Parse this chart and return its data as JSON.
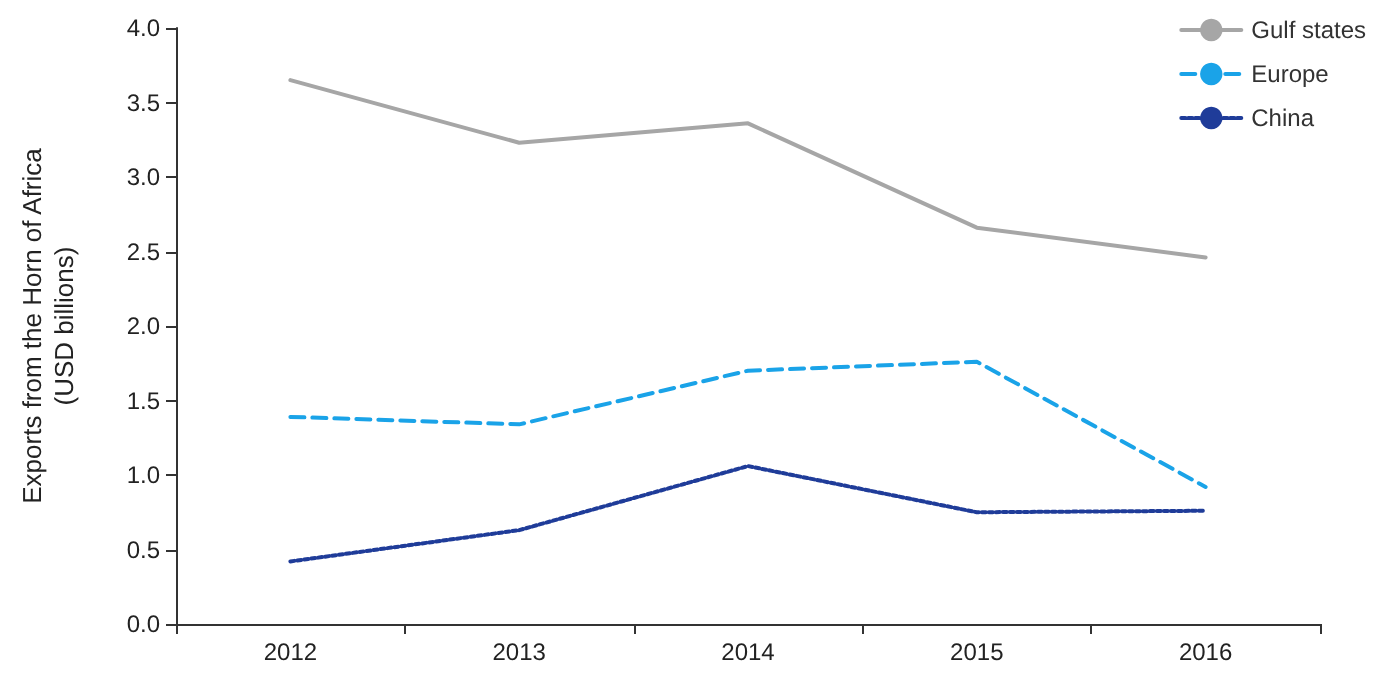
{
  "chart_data": {
    "type": "line",
    "ylabel": "Exports from the Horn of Africa\n(USD billions)",
    "categories": [
      "2012",
      "2013",
      "2014",
      "2015",
      "2016"
    ],
    "series": [
      {
        "name": "Gulf states",
        "color": "#a6a6a6",
        "line_style": "solid",
        "values": [
          3.65,
          3.23,
          3.36,
          2.66,
          2.46
        ]
      },
      {
        "name": "Europe",
        "color": "#1aa3e8",
        "line_style": "dashed",
        "values": [
          1.39,
          1.34,
          1.7,
          1.76,
          0.92
        ]
      },
      {
        "name": "China",
        "color": "#1f3c99",
        "line_style": "dotted",
        "values": [
          0.42,
          0.63,
          1.06,
          0.75,
          0.76
        ]
      }
    ],
    "ylim": [
      0,
      4
    ],
    "yticks": [
      {
        "value": 0,
        "label": "0.0"
      },
      {
        "value": 0.5,
        "label": "0.5"
      },
      {
        "value": 1,
        "label": "1.0"
      },
      {
        "value": 1.5,
        "label": "1.5"
      },
      {
        "value": 2,
        "label": "2.0"
      },
      {
        "value": 2.5,
        "label": "2.5"
      },
      {
        "value": 3,
        "label": "3.0"
      },
      {
        "value": 3.5,
        "label": "3.5"
      },
      {
        "value": 4,
        "label": "4.0"
      }
    ],
    "grid": false,
    "legend": "top right",
    "marker": "none"
  }
}
